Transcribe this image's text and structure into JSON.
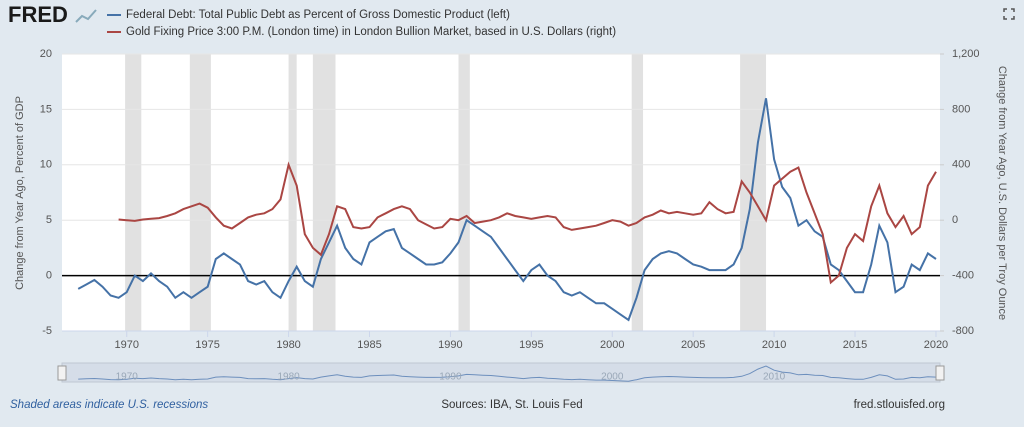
{
  "logo": "FRED",
  "chart_data": {
    "type": "line",
    "y_label": "Change from Year Ago, Percent of GDP",
    "y2_label": "Change from Year Ago, U.S. Dollars per Troy Ounce",
    "xlim": [
      1966,
      2020.25
    ],
    "xticks": [
      1970,
      1975,
      1980,
      1985,
      1990,
      1995,
      2000,
      2005,
      2010,
      2015,
      2020
    ],
    "ylim": [
      -5,
      20
    ],
    "yticks": [
      -5,
      0,
      5,
      10,
      15,
      20
    ],
    "y2lim": [
      -800,
      1200
    ],
    "y2ticks": [
      -800,
      -400,
      0,
      400,
      800,
      {
        "value": 1200,
        "label": "1,200"
      }
    ],
    "grid": true,
    "recessions": [
      [
        1969.9,
        1970.9
      ],
      [
        1973.9,
        1975.2
      ],
      [
        1980.0,
        1980.5
      ],
      [
        1981.5,
        1982.9
      ],
      [
        1990.5,
        1991.2
      ],
      [
        2001.2,
        2001.9
      ],
      [
        2007.9,
        2009.5
      ]
    ],
    "navigator_xticks": [
      1970,
      1980,
      1990,
      2000,
      2010
    ],
    "x": [
      1967,
      1967.5,
      1968,
      1968.5,
      1969,
      1969.5,
      1970,
      1970.5,
      1971,
      1971.5,
      1972,
      1972.5,
      1973,
      1973.5,
      1974,
      1974.5,
      1975,
      1975.5,
      1976,
      1976.5,
      1977,
      1977.5,
      1978,
      1978.5,
      1979,
      1979.5,
      1980,
      1980.5,
      1981,
      1981.5,
      1982,
      1982.5,
      1983,
      1983.5,
      1984,
      1984.5,
      1985,
      1985.5,
      1986,
      1986.5,
      1987,
      1987.5,
      1988,
      1988.5,
      1989,
      1989.5,
      1990,
      1990.5,
      1991,
      1991.5,
      1992,
      1992.5,
      1993,
      1993.5,
      1994,
      1994.5,
      1995,
      1995.5,
      1996,
      1996.5,
      1997,
      1997.5,
      1998,
      1998.5,
      1999,
      1999.5,
      2000,
      2000.5,
      2001,
      2001.5,
      2002,
      2002.5,
      2003,
      2003.5,
      2004,
      2004.5,
      2005,
      2005.5,
      2006,
      2006.5,
      2007,
      2007.5,
      2008,
      2008.5,
      2009,
      2009.5,
      2010,
      2010.5,
      2011,
      2011.5,
      2012,
      2012.5,
      2013,
      2013.5,
      2014,
      2014.5,
      2015,
      2015.5,
      2016,
      2016.5,
      2017,
      2017.5,
      2018,
      2018.5,
      2019,
      2019.5,
      2020
    ],
    "series": [
      {
        "name": "Federal Debt: Total Public Debt as Percent of Gross Domestic Product (left)",
        "color": "#4572a7",
        "axis": "y",
        "values": [
          -1.2,
          -0.8,
          -0.4,
          -1.0,
          -1.8,
          -2.0,
          -1.5,
          0.0,
          -0.5,
          0.2,
          -0.5,
          -1.0,
          -2.0,
          -1.5,
          -2.0,
          -1.5,
          -1.0,
          1.5,
          2.0,
          1.5,
          1.0,
          -0.5,
          -0.8,
          -0.5,
          -1.5,
          -2.0,
          -0.5,
          0.8,
          -0.5,
          -1.0,
          1.5,
          3.0,
          4.5,
          2.5,
          1.5,
          1.0,
          3.0,
          3.5,
          4.0,
          4.2,
          2.5,
          2.0,
          1.5,
          1.0,
          1.0,
          1.2,
          2.0,
          3.0,
          5.0,
          4.5,
          4.0,
          3.5,
          2.5,
          1.5,
          0.5,
          -0.5,
          0.5,
          1.0,
          0.0,
          -0.5,
          -1.5,
          -1.8,
          -1.5,
          -2.0,
          -2.5,
          -2.5,
          -3.0,
          -3.5,
          -4.0,
          -2.0,
          0.5,
          1.5,
          2.0,
          2.2,
          2.0,
          1.5,
          1.0,
          0.8,
          0.5,
          0.5,
          0.5,
          1.0,
          2.5,
          6.0,
          12.0,
          16.0,
          10.5,
          8.0,
          7.0,
          4.5,
          5.0,
          4.0,
          3.5,
          1.0,
          0.5,
          -0.5,
          -1.5,
          -1.5,
          1.0,
          4.5,
          3.0,
          -1.5,
          -1.0,
          1.0,
          0.5,
          2.0,
          1.5
        ]
      },
      {
        "name": "Gold Fixing Price 3:00 P.M. (London time) in London Bullion Market, based in U.S. Dollars (right)",
        "color": "#aa4643",
        "axis": "y2",
        "values": [
          null,
          null,
          null,
          null,
          null,
          5,
          0,
          -5,
          5,
          10,
          15,
          30,
          50,
          80,
          100,
          120,
          90,
          20,
          -40,
          -60,
          -20,
          20,
          40,
          50,
          80,
          150,
          400,
          250,
          -100,
          -200,
          -250,
          -100,
          100,
          80,
          -50,
          -60,
          -50,
          20,
          50,
          80,
          100,
          80,
          0,
          -30,
          -60,
          -50,
          10,
          0,
          30,
          -20,
          -10,
          0,
          20,
          50,
          30,
          20,
          10,
          20,
          30,
          20,
          -50,
          -70,
          -60,
          -50,
          -40,
          -20,
          0,
          -10,
          -40,
          -20,
          20,
          40,
          70,
          50,
          60,
          50,
          40,
          50,
          130,
          80,
          50,
          60,
          280,
          200,
          100,
          0,
          250,
          300,
          350,
          380,
          200,
          50,
          -100,
          -450,
          -400,
          -200,
          -100,
          -150,
          100,
          250,
          50,
          -50,
          30,
          -100,
          -50,
          250,
          350
        ]
      }
    ]
  },
  "footer": {
    "left": "Shaded areas indicate U.S. recessions",
    "center": "Sources: IBA, St. Louis Fed",
    "right": "fred.stlouisfed.org"
  }
}
